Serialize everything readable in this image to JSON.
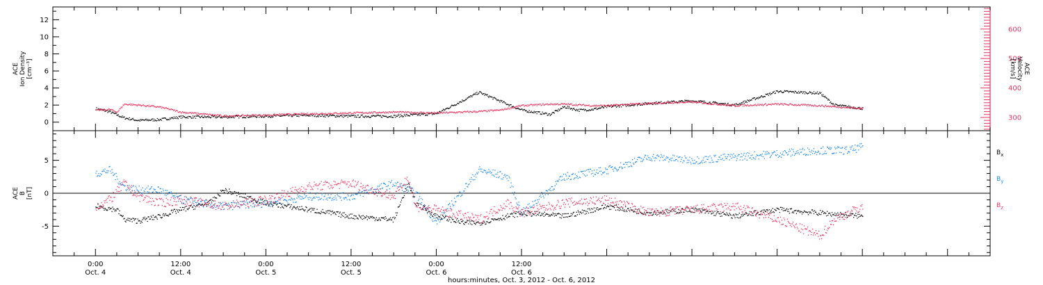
{
  "colors": {
    "black": "#000000",
    "pink": "#e8335f",
    "blue": "#1e88e5"
  },
  "chart_data": [
    {
      "type": "scatter",
      "panel": "top",
      "left_axis_label": [
        "ACE",
        "Ion Density",
        "[cm⁻³]"
      ],
      "right_axis_label": [
        "ACE",
        "Velocity",
        "[km/s]"
      ],
      "left_ylim": [
        -1,
        13.5
      ],
      "left_ticks": [
        0,
        2,
        4,
        6,
        8,
        10,
        12
      ],
      "right_ylim": [
        255,
        675
      ],
      "right_ticks": [
        300,
        400,
        500,
        600
      ],
      "series": [
        {
          "axis": "left",
          "color": "black",
          "noise": 0.15,
          "x": [
            0,
            2,
            4,
            6,
            9,
            12,
            18,
            24,
            30,
            36,
            42,
            48,
            54,
            60,
            64,
            66,
            67,
            68,
            70,
            72,
            78,
            84,
            90,
            96,
            102,
            104,
            106,
            108
          ],
          "y": [
            1.6,
            1.2,
            0.5,
            0.2,
            0.3,
            0.6,
            0.6,
            0.7,
            0.8,
            0.7,
            0.7,
            1.0,
            3.5,
            1.4,
            0.9,
            1.8,
            1.6,
            1.4,
            1.5,
            1.8,
            2.2,
            2.5,
            2.0,
            3.6,
            3.4,
            2.0,
            1.8,
            1.6
          ]
        },
        {
          "axis": "right",
          "color": "pink",
          "noise": 3,
          "x": [
            0,
            2,
            3,
            4,
            6,
            7,
            9,
            10,
            12,
            18,
            24,
            30,
            36,
            42,
            48,
            54,
            57,
            60,
            64,
            66,
            70,
            72,
            78,
            84,
            90,
            96,
            102,
            108
          ],
          "y": [
            324,
            327,
            318,
            345,
            342,
            340,
            335,
            330,
            318,
            305,
            308,
            312,
            315,
            318,
            315,
            320,
            325,
            340,
            345,
            345,
            340,
            340,
            348,
            352,
            340,
            345,
            340,
            330
          ]
        }
      ]
    },
    {
      "type": "scatter",
      "panel": "bottom",
      "axis_label": [
        "ACE",
        "B",
        "[nT]"
      ],
      "ylim": [
        -9.5,
        9.5
      ],
      "ticks": [
        -5,
        0,
        5
      ],
      "zero_line": true,
      "legend": [
        {
          "label": "B",
          "sub": "x",
          "color": "black"
        },
        {
          "label": "B",
          "sub": "y",
          "color": "blue"
        },
        {
          "label": "B",
          "sub": "z",
          "color": "pink"
        }
      ],
      "series": [
        {
          "name": "Bx",
          "color": "black",
          "noise": 0.4,
          "x": [
            0,
            3,
            4,
            6,
            9,
            12,
            14,
            16,
            18,
            24,
            30,
            36,
            42,
            44,
            45,
            48,
            52,
            54,
            60,
            66,
            72,
            78,
            84,
            90,
            96,
            102,
            108
          ],
          "y": [
            -2.0,
            -2.5,
            -4.0,
            -4.2,
            -3.5,
            -2.5,
            -2.0,
            -1.5,
            0.5,
            -1.5,
            -2.5,
            -3.5,
            -4.0,
            1.5,
            -1.5,
            -3.5,
            -4.5,
            -4.5,
            -3.0,
            -3.5,
            -2.0,
            -3.0,
            -2.5,
            -3.5,
            -2.5,
            -3.0,
            -3.5
          ]
        },
        {
          "name": "By",
          "color": "blue",
          "noise": 0.6,
          "x": [
            0,
            2,
            4,
            6,
            9,
            12,
            18,
            24,
            30,
            36,
            42,
            45,
            48,
            54,
            58,
            60,
            66,
            72,
            78,
            84,
            90,
            96,
            102,
            106,
            108
          ],
          "y": [
            3.0,
            3.5,
            1.0,
            0.5,
            0.5,
            -1.0,
            -2.0,
            -1.5,
            -0.5,
            -0.5,
            1.5,
            0.0,
            -4.5,
            3.5,
            2.5,
            -3.0,
            2.5,
            3.5,
            5.5,
            5.0,
            5.5,
            6.0,
            6.5,
            6.5,
            7.0
          ]
        },
        {
          "name": "Bz",
          "color": "pink",
          "noise": 0.7,
          "x": [
            0,
            2,
            4,
            6,
            9,
            12,
            18,
            24,
            30,
            36,
            42,
            44,
            45,
            48,
            54,
            58,
            60,
            66,
            72,
            78,
            84,
            90,
            96,
            102,
            104,
            108
          ],
          "y": [
            -2.0,
            -1.0,
            1.5,
            -0.5,
            -1.5,
            -1.0,
            -2.0,
            -1.0,
            1.0,
            1.5,
            -0.5,
            2.5,
            -2.0,
            -2.5,
            -4.0,
            -1.5,
            -3.0,
            -1.5,
            -1.0,
            -3.0,
            -2.5,
            -2.0,
            -4.0,
            -6.5,
            -4.0,
            -2.0
          ]
        }
      ]
    }
  ],
  "x_axis": {
    "range_hours": [
      -6,
      126
    ],
    "major_ticks": [
      {
        "hour": 0,
        "time": "0:00",
        "date": "Oct. 4"
      },
      {
        "hour": 12,
        "time": "12:00",
        "date": "Oct. 4"
      },
      {
        "hour": 24,
        "time": "0:00",
        "date": "Oct. 5"
      },
      {
        "hour": 36,
        "time": "12:00",
        "date": "Oct. 5"
      },
      {
        "hour": 48,
        "time": "0:00",
        "date": "Oct. 6"
      },
      {
        "hour": 60,
        "time": "12:00",
        "date": "Oct. 6"
      }
    ],
    "xlabel": "hours:minutes, Oct.  3, 2012 - Oct.  6, 2012"
  }
}
